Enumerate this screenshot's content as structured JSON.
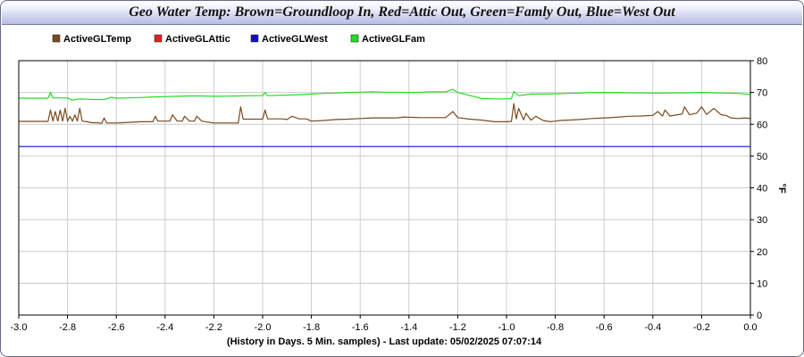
{
  "chart_data": {
    "type": "line",
    "title": "Geo Water Temp: Brown=Groundloop In, Red=Attic Out, Green=Famly Out, Blue=West Out",
    "xlabel": "(History in Days. 5 Min. samples) - Last update: 05/02/2025 07:07:14",
    "ylabel": "°F",
    "xlim": [
      -3.0,
      0.0
    ],
    "ylim": [
      0,
      80
    ],
    "x_ticks": [
      "-3.0",
      "-2.8",
      "-2.6",
      "-2.4",
      "-2.2",
      "-2.0",
      "-1.8",
      "-1.6",
      "-1.4",
      "-1.2",
      "-1.0",
      "-0.8",
      "-0.6",
      "-0.4",
      "-0.2",
      "0.0"
    ],
    "y_ticks": [
      "0",
      "10",
      "20",
      "30",
      "40",
      "50",
      "60",
      "70",
      "80"
    ],
    "grid": true,
    "legend_position": "top-left",
    "series": [
      {
        "name": "ActiveGLTemp",
        "color": "#7a4a1e",
        "x": [
          -3.0,
          -2.88,
          -2.87,
          -2.86,
          -2.85,
          -2.84,
          -2.83,
          -2.82,
          -2.81,
          -2.8,
          -2.79,
          -2.78,
          -2.77,
          -2.76,
          -2.75,
          -2.74,
          -2.72,
          -2.7,
          -2.68,
          -2.66,
          -2.65,
          -2.64,
          -2.62,
          -2.6,
          -2.55,
          -2.5,
          -2.45,
          -2.44,
          -2.43,
          -2.4,
          -2.38,
          -2.37,
          -2.35,
          -2.33,
          -2.32,
          -2.3,
          -2.28,
          -2.27,
          -2.25,
          -2.2,
          -2.15,
          -2.1,
          -2.09,
          -2.08,
          -2.05,
          -2.0,
          -1.99,
          -1.98,
          -1.95,
          -1.92,
          -1.9,
          -1.88,
          -1.85,
          -1.82,
          -1.8,
          -1.75,
          -1.7,
          -1.65,
          -1.6,
          -1.55,
          -1.5,
          -1.45,
          -1.42,
          -1.4,
          -1.35,
          -1.3,
          -1.25,
          -1.22,
          -1.2,
          -1.15,
          -1.1,
          -1.05,
          -1.0,
          -0.98,
          -0.97,
          -0.96,
          -0.95,
          -0.93,
          -0.92,
          -0.9,
          -0.88,
          -0.85,
          -0.82,
          -0.8,
          -0.78,
          -0.75,
          -0.7,
          -0.65,
          -0.6,
          -0.55,
          -0.5,
          -0.45,
          -0.4,
          -0.38,
          -0.36,
          -0.35,
          -0.33,
          -0.3,
          -0.28,
          -0.27,
          -0.25,
          -0.22,
          -0.2,
          -0.18,
          -0.15,
          -0.12,
          -0.1,
          -0.08,
          -0.05,
          -0.02,
          0.0
        ],
        "values": [
          60.9,
          60.9,
          64.5,
          61.0,
          64.0,
          61.0,
          64.5,
          61.0,
          65.0,
          61.0,
          62.5,
          61.0,
          63.0,
          61.0,
          65.0,
          61.0,
          60.8,
          60.5,
          60.5,
          60.3,
          62.0,
          60.4,
          60.4,
          60.4,
          60.6,
          60.8,
          60.8,
          62.5,
          61.0,
          61.0,
          61.0,
          63.0,
          61.0,
          61.0,
          62.5,
          61.0,
          61.0,
          62.5,
          61.0,
          60.4,
          60.4,
          60.4,
          65.5,
          61.6,
          61.6,
          61.6,
          64.5,
          61.7,
          61.7,
          61.7,
          61.5,
          62.5,
          61.7,
          61.7,
          61.0,
          61.2,
          61.5,
          61.6,
          61.8,
          62.0,
          62.0,
          62.0,
          62.3,
          62.2,
          62.1,
          62.1,
          62.1,
          64.0,
          62.1,
          61.6,
          61.3,
          60.8,
          60.8,
          60.9,
          66.5,
          61.7,
          65.0,
          61.4,
          63.5,
          61.3,
          62.5,
          61.2,
          60.8,
          61.0,
          61.2,
          61.3,
          61.5,
          61.8,
          62.0,
          62.2,
          62.5,
          62.6,
          62.8,
          64.0,
          62.6,
          64.5,
          62.6,
          63.0,
          63.2,
          65.5,
          63.0,
          63.5,
          65.5,
          63.1,
          65.0,
          63.0,
          62.8,
          62.0,
          61.8,
          62.0,
          61.8
        ]
      },
      {
        "name": "ActiveGLAttic",
        "color": "#e02020",
        "x": [],
        "values": []
      },
      {
        "name": "ActiveGLWest",
        "color": "#1010c0",
        "x": [
          -3.0,
          0.0
        ],
        "values": [
          53.0,
          53.0
        ]
      },
      {
        "name": "ActiveGLFam",
        "color": "#22dd22",
        "x": [
          -3.0,
          -2.88,
          -2.87,
          -2.86,
          -2.8,
          -2.78,
          -2.75,
          -2.7,
          -2.65,
          -2.62,
          -2.6,
          -2.55,
          -2.5,
          -2.45,
          -2.4,
          -2.35,
          -2.3,
          -2.25,
          -2.2,
          -2.1,
          -2.05,
          -2.0,
          -1.99,
          -1.98,
          -1.9,
          -1.85,
          -1.8,
          -1.75,
          -1.7,
          -1.65,
          -1.6,
          -1.55,
          -1.5,
          -1.45,
          -1.4,
          -1.35,
          -1.3,
          -1.25,
          -1.22,
          -1.2,
          -1.1,
          -1.05,
          -1.0,
          -0.98,
          -0.97,
          -0.95,
          -0.92,
          -0.9,
          -0.85,
          -0.8,
          -0.75,
          -0.7,
          -0.65,
          -0.6,
          -0.55,
          -0.5,
          -0.45,
          -0.4,
          -0.35,
          -0.3,
          -0.25,
          -0.2,
          -0.15,
          -0.1,
          -0.05,
          0.0
        ],
        "values": [
          68.2,
          68.2,
          70.0,
          68.3,
          68.3,
          67.6,
          68.0,
          67.8,
          67.8,
          68.5,
          68.2,
          68.3,
          68.4,
          68.6,
          68.7,
          68.8,
          68.9,
          68.9,
          68.8,
          68.9,
          69.0,
          69.0,
          70.0,
          69.0,
          69.2,
          69.3,
          69.5,
          69.7,
          69.8,
          70.0,
          70.1,
          70.2,
          70.1,
          70.1,
          70.0,
          70.1,
          70.2,
          70.2,
          71.0,
          70.0,
          68.1,
          68.0,
          68.0,
          68.1,
          70.3,
          69.0,
          69.3,
          69.5,
          69.5,
          69.6,
          69.7,
          69.8,
          70.0,
          70.0,
          70.0,
          69.9,
          69.9,
          69.8,
          69.8,
          69.9,
          69.9,
          70.0,
          69.9,
          69.8,
          69.7,
          69.4
        ]
      }
    ]
  }
}
